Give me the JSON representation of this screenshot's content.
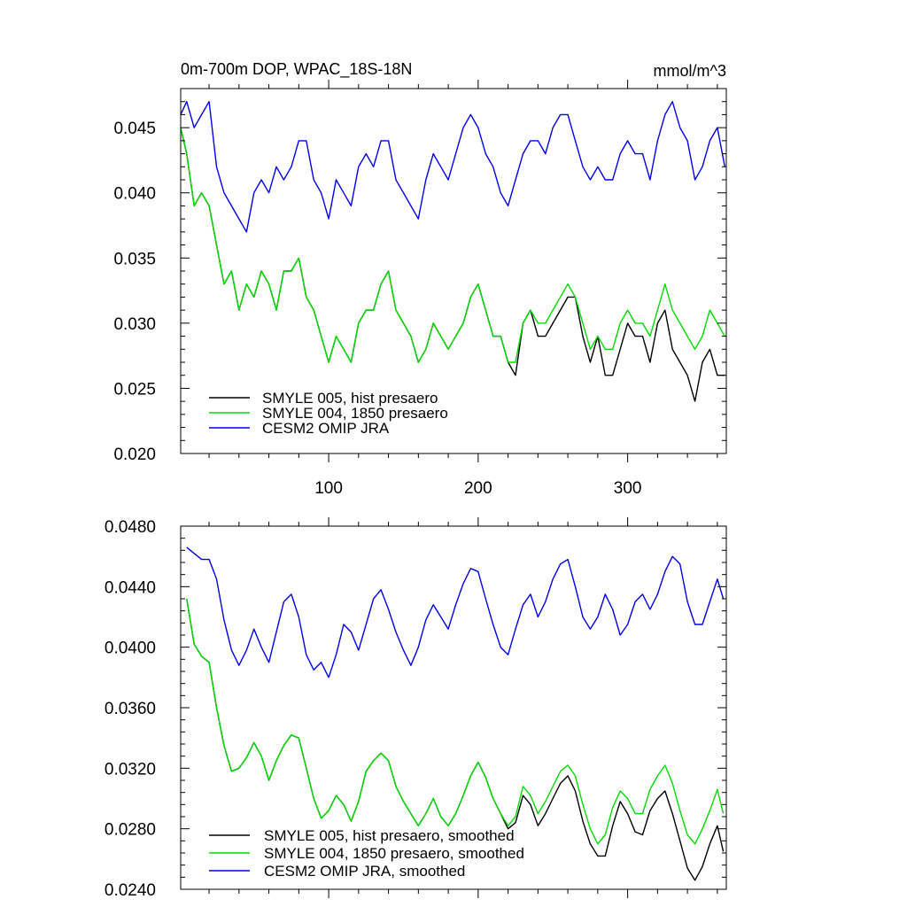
{
  "chart_data": [
    {
      "type": "line",
      "title_left": "0m-700m DOP, WPAC_18S-18N",
      "title_right": "mmol/m^3",
      "xlim": [
        1,
        366
      ],
      "ylim": [
        0.02,
        0.048
      ],
      "x_ticks": [
        100,
        200,
        300
      ],
      "x_tick_labels": [
        "100",
        "200",
        "300"
      ],
      "y_ticks": [
        0.02,
        0.025,
        0.03,
        0.035,
        0.04,
        0.045
      ],
      "y_tick_labels": [
        "0.020",
        "0.025",
        "0.030",
        "0.035",
        "0.040",
        "0.045"
      ],
      "legend_position": "bottom-left",
      "series": [
        {
          "name": "SMYLE 005, hist presaero",
          "color": "#000000",
          "x": [
            1,
            5,
            10,
            15,
            20,
            25,
            30,
            35,
            40,
            45,
            50,
            55,
            60,
            65,
            70,
            75,
            80,
            85,
            90,
            95,
            100,
            105,
            110,
            115,
            120,
            125,
            130,
            135,
            140,
            145,
            150,
            155,
            160,
            165,
            170,
            175,
            180,
            185,
            190,
            195,
            200,
            205,
            210,
            215,
            220,
            225,
            230,
            235,
            240,
            245,
            250,
            255,
            260,
            265,
            270,
            275,
            280,
            285,
            290,
            295,
            300,
            305,
            310,
            315,
            320,
            325,
            330,
            335,
            340,
            345,
            350,
            355,
            360,
            365
          ],
          "values": [
            0.045,
            0.043,
            0.039,
            0.04,
            0.039,
            0.036,
            0.033,
            0.034,
            0.031,
            0.033,
            0.032,
            0.034,
            0.033,
            0.031,
            0.034,
            0.034,
            0.035,
            0.032,
            0.031,
            0.029,
            0.027,
            0.029,
            0.028,
            0.027,
            0.03,
            0.031,
            0.031,
            0.033,
            0.034,
            0.031,
            0.03,
            0.029,
            0.027,
            0.028,
            0.03,
            0.029,
            0.028,
            0.029,
            0.03,
            0.032,
            0.033,
            0.031,
            0.029,
            0.029,
            0.027,
            0.026,
            0.03,
            0.031,
            0.029,
            0.029,
            0.03,
            0.031,
            0.032,
            0.032,
            0.029,
            0.027,
            0.029,
            0.026,
            0.026,
            0.028,
            0.03,
            0.029,
            0.029,
            0.027,
            0.03,
            0.031,
            0.028,
            0.027,
            0.026,
            0.024,
            0.027,
            0.028,
            0.026,
            0.026
          ]
        },
        {
          "name": "SMYLE 004, 1850 presaero",
          "color": "#00dd00",
          "x": [
            1,
            5,
            10,
            15,
            20,
            25,
            30,
            35,
            40,
            45,
            50,
            55,
            60,
            65,
            70,
            75,
            80,
            85,
            90,
            95,
            100,
            105,
            110,
            115,
            120,
            125,
            130,
            135,
            140,
            145,
            150,
            155,
            160,
            165,
            170,
            175,
            180,
            185,
            190,
            195,
            200,
            205,
            210,
            215,
            220,
            225,
            230,
            235,
            240,
            245,
            250,
            255,
            260,
            265,
            270,
            275,
            280,
            285,
            290,
            295,
            300,
            305,
            310,
            315,
            320,
            325,
            330,
            335,
            340,
            345,
            350,
            355,
            360,
            365
          ],
          "values": [
            0.045,
            0.043,
            0.039,
            0.04,
            0.039,
            0.036,
            0.033,
            0.034,
            0.031,
            0.033,
            0.032,
            0.034,
            0.033,
            0.031,
            0.034,
            0.034,
            0.035,
            0.032,
            0.031,
            0.029,
            0.027,
            0.029,
            0.028,
            0.027,
            0.03,
            0.031,
            0.031,
            0.033,
            0.034,
            0.031,
            0.03,
            0.029,
            0.027,
            0.028,
            0.03,
            0.029,
            0.028,
            0.029,
            0.03,
            0.032,
            0.033,
            0.031,
            0.029,
            0.029,
            0.027,
            0.027,
            0.03,
            0.031,
            0.03,
            0.03,
            0.031,
            0.032,
            0.033,
            0.032,
            0.03,
            0.028,
            0.029,
            0.028,
            0.028,
            0.03,
            0.031,
            0.03,
            0.03,
            0.029,
            0.031,
            0.033,
            0.031,
            0.03,
            0.029,
            0.028,
            0.029,
            0.031,
            0.03,
            0.029
          ]
        },
        {
          "name": "CESM2 OMIP JRA",
          "color": "#0000ee",
          "x": [
            1,
            5,
            10,
            15,
            20,
            25,
            30,
            35,
            40,
            45,
            50,
            55,
            60,
            65,
            70,
            75,
            80,
            85,
            90,
            95,
            100,
            105,
            110,
            115,
            120,
            125,
            130,
            135,
            140,
            145,
            150,
            155,
            160,
            165,
            170,
            175,
            180,
            185,
            190,
            195,
            200,
            205,
            210,
            215,
            220,
            225,
            230,
            235,
            240,
            245,
            250,
            255,
            260,
            265,
            270,
            275,
            280,
            285,
            290,
            295,
            300,
            305,
            310,
            315,
            320,
            325,
            330,
            335,
            340,
            345,
            350,
            355,
            360,
            365
          ],
          "values": [
            0.046,
            0.047,
            0.045,
            0.046,
            0.047,
            0.042,
            0.04,
            0.039,
            0.038,
            0.037,
            0.04,
            0.041,
            0.04,
            0.042,
            0.041,
            0.042,
            0.044,
            0.044,
            0.041,
            0.04,
            0.038,
            0.041,
            0.04,
            0.039,
            0.042,
            0.043,
            0.042,
            0.044,
            0.044,
            0.041,
            0.04,
            0.039,
            0.038,
            0.041,
            0.043,
            0.042,
            0.041,
            0.043,
            0.045,
            0.046,
            0.045,
            0.043,
            0.042,
            0.04,
            0.039,
            0.041,
            0.043,
            0.044,
            0.044,
            0.043,
            0.045,
            0.046,
            0.046,
            0.044,
            0.042,
            0.041,
            0.042,
            0.041,
            0.041,
            0.043,
            0.044,
            0.043,
            0.043,
            0.041,
            0.044,
            0.046,
            0.047,
            0.045,
            0.044,
            0.041,
            0.042,
            0.044,
            0.045,
            0.042
          ]
        }
      ]
    },
    {
      "type": "line",
      "xlim": [
        1,
        366
      ],
      "ylim": [
        0.024,
        0.048
      ],
      "x_ticks": [
        100,
        200,
        300
      ],
      "x_tick_labels": [
        "",
        "",
        ""
      ],
      "y_ticks": [
        0.024,
        0.028,
        0.032,
        0.036,
        0.04,
        0.044,
        0.048
      ],
      "y_tick_labels": [
        "0.0240",
        "0.0280",
        "0.0320",
        "0.0360",
        "0.0400",
        "0.0440",
        "0.0480"
      ],
      "legend_position": "bottom-left",
      "series": [
        {
          "name": "SMYLE 005, hist presaero, smoothed",
          "color": "#000000",
          "x": [
            5,
            10,
            15,
            20,
            25,
            30,
            35,
            40,
            45,
            50,
            55,
            60,
            65,
            70,
            75,
            80,
            85,
            90,
            95,
            100,
            105,
            110,
            115,
            120,
            125,
            130,
            135,
            140,
            145,
            150,
            155,
            160,
            165,
            170,
            175,
            180,
            185,
            190,
            195,
            200,
            205,
            210,
            215,
            220,
            225,
            230,
            235,
            240,
            245,
            250,
            255,
            260,
            265,
            270,
            275,
            280,
            285,
            290,
            295,
            300,
            305,
            310,
            315,
            320,
            325,
            330,
            335,
            340,
            345,
            350,
            355,
            360,
            364
          ],
          "values": [
            0.0432,
            0.0402,
            0.0394,
            0.039,
            0.036,
            0.0335,
            0.0318,
            0.032,
            0.0327,
            0.0337,
            0.0328,
            0.0312,
            0.0325,
            0.0335,
            0.0342,
            0.034,
            0.032,
            0.03,
            0.0287,
            0.0292,
            0.0302,
            0.0296,
            0.0285,
            0.0298,
            0.0318,
            0.0325,
            0.033,
            0.0325,
            0.0308,
            0.0298,
            0.029,
            0.0282,
            0.029,
            0.03,
            0.0288,
            0.0282,
            0.029,
            0.0302,
            0.0315,
            0.0324,
            0.0314,
            0.03,
            0.029,
            0.028,
            0.0284,
            0.0302,
            0.0296,
            0.0282,
            0.029,
            0.03,
            0.031,
            0.0315,
            0.0305,
            0.0285,
            0.027,
            0.0262,
            0.0262,
            0.0282,
            0.0298,
            0.029,
            0.0278,
            0.0276,
            0.0292,
            0.03,
            0.0305,
            0.029,
            0.0272,
            0.0254,
            0.0246,
            0.0255,
            0.027,
            0.0282,
            0.0265
          ]
        },
        {
          "name": "SMYLE 004, 1850 presaero, smoothed",
          "color": "#00dd00",
          "x": [
            5,
            10,
            15,
            20,
            25,
            30,
            35,
            40,
            45,
            50,
            55,
            60,
            65,
            70,
            75,
            80,
            85,
            90,
            95,
            100,
            105,
            110,
            115,
            120,
            125,
            130,
            135,
            140,
            145,
            150,
            155,
            160,
            165,
            170,
            175,
            180,
            185,
            190,
            195,
            200,
            205,
            210,
            215,
            220,
            225,
            230,
            235,
            240,
            245,
            250,
            255,
            260,
            265,
            270,
            275,
            280,
            285,
            290,
            295,
            300,
            305,
            310,
            315,
            320,
            325,
            330,
            335,
            340,
            345,
            350,
            355,
            360,
            364
          ],
          "values": [
            0.0432,
            0.0402,
            0.0394,
            0.039,
            0.036,
            0.0335,
            0.0318,
            0.032,
            0.0327,
            0.0337,
            0.0328,
            0.0312,
            0.0325,
            0.0335,
            0.0342,
            0.034,
            0.032,
            0.03,
            0.0287,
            0.0292,
            0.0302,
            0.0296,
            0.0285,
            0.0298,
            0.0318,
            0.0325,
            0.033,
            0.0325,
            0.0308,
            0.0298,
            0.029,
            0.0282,
            0.029,
            0.03,
            0.0288,
            0.0282,
            0.029,
            0.0302,
            0.0315,
            0.0324,
            0.0314,
            0.03,
            0.029,
            0.0282,
            0.0288,
            0.0308,
            0.0302,
            0.029,
            0.0298,
            0.0308,
            0.0318,
            0.0322,
            0.0315,
            0.0296,
            0.028,
            0.027,
            0.0276,
            0.0294,
            0.0305,
            0.03,
            0.029,
            0.029,
            0.0306,
            0.0315,
            0.0322,
            0.031,
            0.0292,
            0.0276,
            0.027,
            0.028,
            0.0292,
            0.0306,
            0.029
          ]
        },
        {
          "name": "CESM2 OMIP JRA, smoothed",
          "color": "#0000ee",
          "x": [
            5,
            10,
            15,
            20,
            25,
            30,
            35,
            40,
            45,
            50,
            55,
            60,
            65,
            70,
            75,
            80,
            85,
            90,
            95,
            100,
            105,
            110,
            115,
            120,
            125,
            130,
            135,
            140,
            145,
            150,
            155,
            160,
            165,
            170,
            175,
            180,
            185,
            190,
            195,
            200,
            205,
            210,
            215,
            220,
            225,
            230,
            235,
            240,
            245,
            250,
            255,
            260,
            265,
            270,
            275,
            280,
            285,
            290,
            295,
            300,
            305,
            310,
            315,
            320,
            325,
            330,
            335,
            340,
            345,
            350,
            355,
            360,
            364
          ],
          "values": [
            0.0466,
            0.0462,
            0.0458,
            0.0458,
            0.0445,
            0.0418,
            0.0398,
            0.0388,
            0.0398,
            0.0412,
            0.04,
            0.039,
            0.041,
            0.043,
            0.0435,
            0.042,
            0.0395,
            0.0385,
            0.039,
            0.038,
            0.0395,
            0.0415,
            0.041,
            0.0398,
            0.0415,
            0.0432,
            0.0438,
            0.0425,
            0.041,
            0.0398,
            0.0388,
            0.04,
            0.0418,
            0.0428,
            0.042,
            0.0412,
            0.0428,
            0.0442,
            0.0452,
            0.045,
            0.0432,
            0.0415,
            0.04,
            0.0395,
            0.0412,
            0.0428,
            0.0435,
            0.042,
            0.043,
            0.0445,
            0.0455,
            0.0458,
            0.044,
            0.042,
            0.0412,
            0.042,
            0.0435,
            0.0425,
            0.0408,
            0.0415,
            0.043,
            0.0435,
            0.0425,
            0.0435,
            0.045,
            0.046,
            0.0455,
            0.043,
            0.0415,
            0.0415,
            0.043,
            0.0445,
            0.0432
          ]
        }
      ]
    }
  ]
}
